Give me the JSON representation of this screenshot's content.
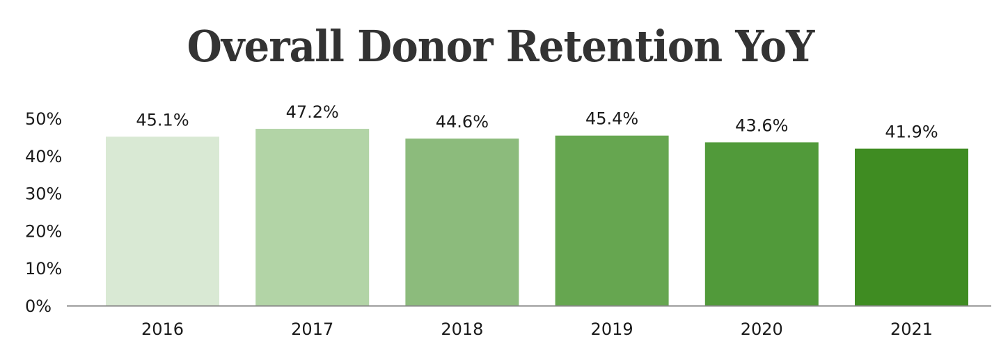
{
  "chart_data": {
    "type": "bar",
    "title": "Overall Donor Retention YoY",
    "xlabel": "",
    "ylabel": "",
    "categories": [
      "2016",
      "2017",
      "2018",
      "2019",
      "2020",
      "2021"
    ],
    "values": [
      45.1,
      47.2,
      44.6,
      45.4,
      43.6,
      41.9
    ],
    "data_labels": [
      "45.1%",
      "47.2%",
      "44.6%",
      "45.4%",
      "43.6%",
      "41.9%"
    ],
    "colors": [
      "#d9e9d4",
      "#b2d4a6",
      "#8cbb7c",
      "#66a650",
      "#519a3a",
      "#3f8c22"
    ],
    "ylim": [
      0,
      50
    ],
    "yticks": [
      0,
      10,
      20,
      30,
      40,
      50
    ],
    "ytick_labels": [
      "0%",
      "10%",
      "20%",
      "30%",
      "40%",
      "50%"
    ],
    "grid": false,
    "legend": "none",
    "axis_color": "#888888"
  }
}
